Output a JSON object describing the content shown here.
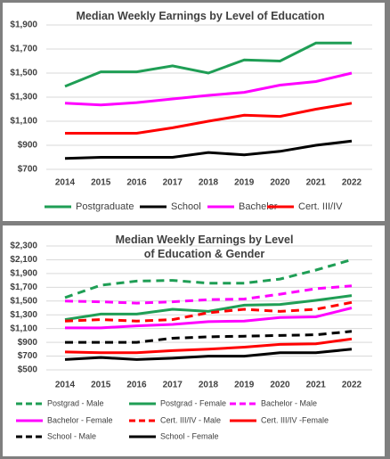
{
  "chart_data": [
    {
      "type": "line",
      "title": "Median Weekly Earnings by Level of Education",
      "categories": [
        "2014",
        "2015",
        "2016",
        "2017",
        "2018",
        "2019",
        "2020",
        "2021",
        "2022"
      ],
      "ylim": [
        700,
        1900
      ],
      "yticks": [
        {
          "value": 700,
          "label": "$700"
        },
        {
          "value": 900,
          "label": "$900"
        },
        {
          "value": 1100,
          "label": "$1,100"
        },
        {
          "value": 1300,
          "label": "$1,300"
        },
        {
          "value": 1500,
          "label": "$1,500"
        },
        {
          "value": 1700,
          "label": "$1,700"
        },
        {
          "value": 1900,
          "label": "$1,900"
        }
      ],
      "grid": true,
      "legend": "bottom",
      "series": [
        {
          "name": "Postgraduate",
          "color": "#1f9e55",
          "dashed": false,
          "values": [
            1390,
            1510,
            1510,
            1560,
            1500,
            1610,
            1600,
            1750,
            1750
          ]
        },
        {
          "name": "School",
          "color": "#000000",
          "dashed": false,
          "values": [
            790,
            800,
            800,
            800,
            840,
            820,
            850,
            900,
            935
          ]
        },
        {
          "name": "Bachelor",
          "color": "#ff00ff",
          "dashed": false,
          "values": [
            1250,
            1235,
            1255,
            1285,
            1315,
            1340,
            1400,
            1430,
            1500
          ]
        },
        {
          "name": "Cert. III/IV",
          "color": "#ff0000",
          "dashed": false,
          "values": [
            1000,
            1000,
            1000,
            1045,
            1100,
            1150,
            1140,
            1200,
            1250
          ]
        }
      ]
    },
    {
      "type": "line",
      "title": "Median Weekly Earnings by Level of Education & Gender",
      "categories": [
        "2014",
        "2015",
        "2016",
        "2017",
        "2018",
        "2019",
        "2020",
        "2021",
        "2022"
      ],
      "ylim": [
        500,
        2300
      ],
      "yticks": [
        {
          "value": 500,
          "label": "$500"
        },
        {
          "value": 700,
          "label": "$700"
        },
        {
          "value": 900,
          "label": "$900"
        },
        {
          "value": 1100,
          "label": "$1,100"
        },
        {
          "value": 1300,
          "label": "$1,300"
        },
        {
          "value": 1500,
          "label": "$1,500"
        },
        {
          "value": 1700,
          "label": "$1,700"
        },
        {
          "value": 1900,
          "label": "$1,900"
        },
        {
          "value": 2100,
          "label": "$2,100"
        },
        {
          "value": 2300,
          "label": "$2,300"
        }
      ],
      "grid": true,
      "legend": "bottom",
      "series": [
        {
          "name": "Postgrad - Male",
          "color": "#1f9e55",
          "dashed": true,
          "values": [
            1550,
            1730,
            1790,
            1800,
            1760,
            1760,
            1820,
            1950,
            2100
          ]
        },
        {
          "name": "Postgrad - Female",
          "color": "#1f9e55",
          "dashed": false,
          "values": [
            1230,
            1310,
            1310,
            1380,
            1350,
            1440,
            1450,
            1510,
            1580
          ]
        },
        {
          "name": "Bachelor - Male",
          "color": "#ff00ff",
          "dashed": true,
          "values": [
            1500,
            1490,
            1470,
            1490,
            1520,
            1530,
            1600,
            1680,
            1720
          ]
        },
        {
          "name": "Bachelor - Female",
          "color": "#ff00ff",
          "dashed": false,
          "values": [
            1110,
            1110,
            1140,
            1160,
            1200,
            1210,
            1260,
            1270,
            1400
          ]
        },
        {
          "name": "Cert. III/IV - Male",
          "color": "#ff0000",
          "dashed": true,
          "values": [
            1210,
            1230,
            1210,
            1230,
            1330,
            1380,
            1350,
            1380,
            1480
          ]
        },
        {
          "name": "Cert. III/IV -Female",
          "color": "#ff0000",
          "dashed": false,
          "values": [
            760,
            750,
            750,
            780,
            800,
            830,
            870,
            880,
            950
          ]
        },
        {
          "name": "School - Male",
          "color": "#000000",
          "dashed": true,
          "values": [
            900,
            900,
            900,
            960,
            980,
            990,
            1000,
            1010,
            1060
          ]
        },
        {
          "name": "School - Female",
          "color": "#000000",
          "dashed": false,
          "values": [
            650,
            680,
            650,
            670,
            700,
            700,
            750,
            750,
            800
          ]
        }
      ]
    }
  ]
}
